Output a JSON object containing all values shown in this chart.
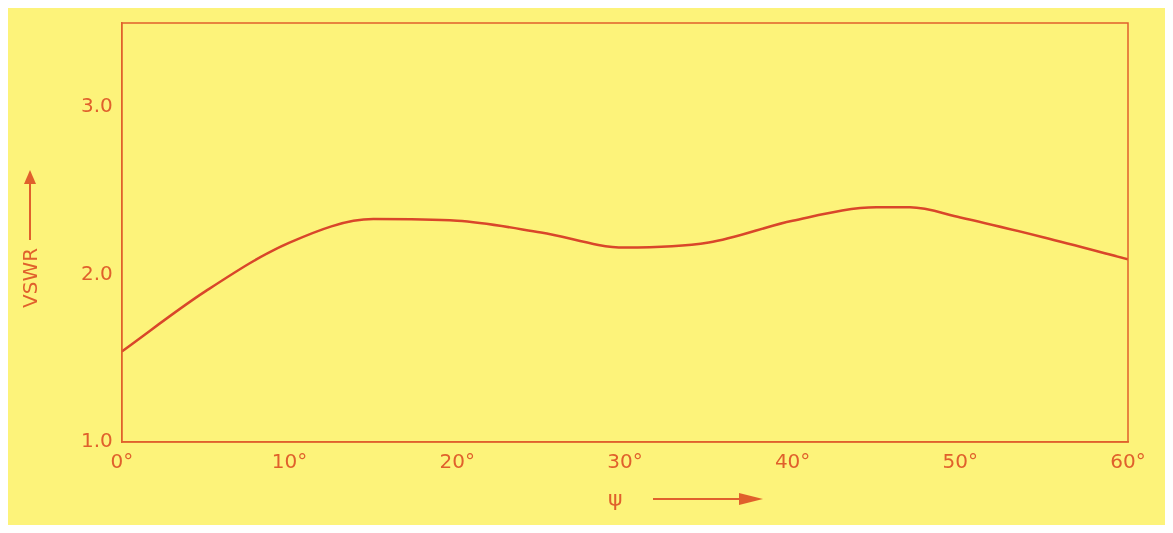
{
  "chart_data": {
    "type": "line",
    "xlabel": "ψ",
    "ylabel": "VSWR",
    "x": [
      0,
      5,
      10,
      15,
      20,
      25,
      30,
      35,
      40,
      45,
      47,
      50,
      55,
      60
    ],
    "series": [
      {
        "color": "#d9462a",
        "values": [
          1.54,
          1.9,
          2.19,
          2.33,
          2.32,
          2.25,
          2.16,
          2.19,
          2.32,
          2.4,
          2.4,
          2.34,
          2.22,
          2.09
        ]
      }
    ],
    "xlim": [
      0,
      60
    ],
    "xticks": [
      {
        "value": 0,
        "label": "0°"
      },
      {
        "value": 10,
        "label": "10°"
      },
      {
        "value": 20,
        "label": "20°"
      },
      {
        "value": 30,
        "label": "30°"
      },
      {
        "value": 40,
        "label": "40°"
      },
      {
        "value": 50,
        "label": "50°"
      },
      {
        "value": 60,
        "label": "60°"
      }
    ],
    "ylim": [
      1,
      3.5
    ],
    "yticks": [
      {
        "value": 1,
        "label": "1.0"
      },
      {
        "value": 2,
        "label": "2.0"
      },
      {
        "value": 3,
        "label": "3.0"
      }
    ],
    "grid": false,
    "legend": false,
    "marker": "none",
    "line_style": "solid"
  }
}
